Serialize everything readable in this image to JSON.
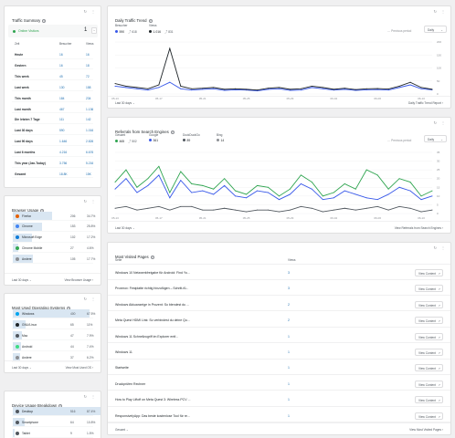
{
  "traffic_summary": {
    "title": "Traffic Summary",
    "online_label": "Online Visitors",
    "online_count": "1",
    "col_period": "Zeit",
    "col_visitors": "Besucher",
    "col_views": "Views",
    "rows": [
      {
        "label": "Heute",
        "visitors": "16",
        "views": "16"
      },
      {
        "label": "Gestern",
        "visitors": "16",
        "views": "18"
      },
      {
        "label": "This week",
        "visitors": "45",
        "views": "72"
      },
      {
        "label": "Last week",
        "visitors": "130",
        "views": "158"
      },
      {
        "label": "This month",
        "visitors": "184",
        "views": "234"
      },
      {
        "label": "Last month",
        "visitors": "467",
        "views": "1.136"
      },
      {
        "label": "Die letzten 7 Tage",
        "visitors": "111",
        "views": "142"
      },
      {
        "label": "Last 30 days",
        "visitors": "590",
        "views": "1.016"
      },
      {
        "label": "Last 90 days",
        "visitors": "1.646",
        "views": "2.826"
      },
      {
        "label": "Last 6 months",
        "visitors": "4.216",
        "views": "6.676"
      },
      {
        "label": "This year (Jan-Today)",
        "visitors": "3.756",
        "views": "5.216"
      },
      {
        "label": "Gesamt",
        "visitors": "18.8K",
        "views": "15K"
      }
    ]
  },
  "browser_usage": {
    "title": "Browser Usage",
    "rows": [
      {
        "name": "Firefox",
        "count": "206",
        "pct": "34.7%",
        "frac": 0.347,
        "color": "#e66000"
      },
      {
        "name": "Chrome",
        "count": "153",
        "pct": "25.8%",
        "frac": 0.258,
        "color": "#4285f4"
      },
      {
        "name": "Microsoft Edge",
        "count": "102",
        "pct": "17.2%",
        "frac": 0.172,
        "color": "#0f7cd8"
      },
      {
        "name": "Chrome Mobile",
        "count": "27",
        "pct": "4.6%",
        "frac": 0.046,
        "color": "#34a853"
      },
      {
        "name": "Andere",
        "count": "105",
        "pct": "17.7%",
        "frac": 0.177,
        "color": "#8c8f94"
      }
    ],
    "period": "Last 30 days",
    "link": "View Browser Usage"
  },
  "os_usage": {
    "title": "Most Used Operating Systems",
    "rows": [
      {
        "name": "Windows",
        "count": "400",
        "pct": "67.5%",
        "frac": 0.675,
        "color": "#00a4ef"
      },
      {
        "name": "GNU/Linux",
        "count": "65",
        "pct": "11%",
        "frac": 0.11,
        "color": "#1d2327"
      },
      {
        "name": "Mac",
        "count": "47",
        "pct": "7.9%",
        "frac": 0.079,
        "color": "#50575e"
      },
      {
        "name": "Android",
        "count": "44",
        "pct": "7.4%",
        "frac": 0.074,
        "color": "#3ddc84"
      },
      {
        "name": "Andere",
        "count": "37",
        "pct": "6.2%",
        "frac": 0.062,
        "color": "#8c8f94"
      }
    ],
    "period": "Last 30 days",
    "link": "View Most Used OS"
  },
  "device_usage": {
    "title": "Device Usage Breakdown",
    "rows": [
      {
        "name": "Desktop",
        "count": "516",
        "pct": "87.4%",
        "frac": 0.874
      },
      {
        "name": "Smartphone",
        "count": "64",
        "pct": "10.8%",
        "frac": 0.108
      },
      {
        "name": "Tablet",
        "count": "9",
        "pct": "1.5%",
        "frac": 0.015
      }
    ]
  },
  "daily_trend": {
    "title": "Daily Traffic Trend",
    "series_labels": [
      {
        "name": "Besucher",
        "value": "590",
        "change": "618",
        "color": "#3858e9"
      },
      {
        "name": "Views",
        "value": "1.016",
        "change": "831",
        "color": "#1d2327"
      }
    ],
    "previous_label": "Previous period",
    "select": "Daily",
    "period": "Last 30 days",
    "link": "Daily Traffic Trend Report"
  },
  "referrals": {
    "title": "Referrals from Search Engines",
    "series_labels": [
      {
        "name": "Gesamt",
        "value": "465",
        "change": "502",
        "color": "#2ea44f"
      },
      {
        "name": "Google",
        "value": "361",
        "change": "",
        "color": "#3858e9"
      },
      {
        "name": "DuckDuckGo",
        "value": "89",
        "change": "",
        "color": "#50575e"
      },
      {
        "name": "Bing",
        "value": "14",
        "change": "",
        "color": "#8c8f94"
      }
    ],
    "previous_label": "Previous period",
    "select": "Daily",
    "period": "Last 30 days",
    "link": "View Referrals from Search Engines"
  },
  "pages": {
    "title": "Most Visited Pages",
    "col_title": "Seite",
    "col_views": "Views",
    "button_label": "View Content",
    "rows": [
      {
        "title": "Windows 10 Netzwerkfreigabe für Android: Find Yo...",
        "views": "3"
      },
      {
        "title": "Proxmox: Festplatte richtig hinzufügen – Schritt-fü...",
        "views": "3"
      },
      {
        "title": "Windows Akkuanzeige in Prozent: So blendest du ...",
        "views": "2"
      },
      {
        "title": "Meta Quest HDMI Link: So verbindest du deine Qu...",
        "views": "2"
      },
      {
        "title": "Windows 11 Schnellzugriff im Explorer entf...",
        "views": "1"
      },
      {
        "title": "Windows 11",
        "views": "1"
      },
      {
        "title": "Startseite",
        "views": "1"
      },
      {
        "title": "Druckprüfen Rechner",
        "views": "1"
      },
      {
        "title": "How to Play Liftoff on Meta Quest 3: Wireless PCV ...",
        "views": "1"
      },
      {
        "title": "ResponsivelyApp: Das beste kostenlose Tool für re...",
        "views": "1"
      }
    ],
    "period": "Gesamt",
    "link": "View Most Visited Pages"
  },
  "chart_data": [
    {
      "type": "line",
      "title": "Daily Traffic Trend",
      "x": [
        "05-13",
        "05-14",
        "05-15",
        "05-16",
        "05-17",
        "05-18",
        "05-19",
        "05-20",
        "05-21",
        "05-22",
        "05-23",
        "05-24",
        "05-25",
        "05-26",
        "05-27",
        "05-28",
        "05-29",
        "05-30",
        "05-31",
        "06-01",
        "06-02",
        "06-03",
        "06-04",
        "06-05",
        "06-06",
        "06-07",
        "06-08",
        "06-09",
        "06-10",
        "06-11"
      ],
      "x_ticks": [
        "05-13",
        "05-17",
        "05-21",
        "05-25",
        "05-29",
        "06-02",
        "06-06",
        "06-10"
      ],
      "y_ticks": [
        0,
        50,
        100,
        150,
        200
      ],
      "ylim": [
        0,
        200
      ],
      "series": [
        {
          "name": "Besucher",
          "values": [
            30,
            25,
            20,
            15,
            25,
            45,
            20,
            15,
            18,
            20,
            14,
            16,
            15,
            12,
            18,
            20,
            14,
            15,
            25,
            20,
            15,
            18,
            14,
            16,
            17,
            15,
            25,
            35,
            20,
            16
          ]
        },
        {
          "name": "Views",
          "values": [
            40,
            30,
            25,
            20,
            35,
            175,
            30,
            20,
            22,
            25,
            18,
            20,
            18,
            15,
            22,
            25,
            18,
            20,
            30,
            25,
            18,
            22,
            17,
            20,
            21,
            19,
            30,
            45,
            25,
            18
          ]
        }
      ]
    },
    {
      "type": "line",
      "title": "Referrals from Search Engines",
      "x": [
        "05-13",
        "05-14",
        "05-15",
        "05-16",
        "05-17",
        "05-18",
        "05-19",
        "05-20",
        "05-21",
        "05-22",
        "05-23",
        "05-24",
        "05-25",
        "05-26",
        "05-27",
        "05-28",
        "05-29",
        "05-30",
        "05-31",
        "06-01",
        "06-02",
        "06-03",
        "06-04",
        "06-05",
        "06-06",
        "06-07",
        "06-08",
        "06-09",
        "06-10",
        "06-11"
      ],
      "x_ticks": [
        "05-13",
        "05-17",
        "05-21",
        "05-25",
        "05-29",
        "06-02",
        "06-06",
        "06-10"
      ],
      "y_ticks": [
        0,
        5,
        10,
        15,
        20,
        25,
        30,
        35
      ],
      "ylim": [
        0,
        35
      ],
      "series": [
        {
          "name": "Gesamt",
          "values": [
            18,
            25,
            15,
            20,
            27,
            12,
            24,
            17,
            16,
            14,
            20,
            13,
            11,
            16,
            15,
            10,
            14,
            22,
            18,
            10,
            12,
            17,
            14,
            25,
            22,
            14,
            20,
            18,
            10,
            13
          ]
        },
        {
          "name": "Google",
          "values": [
            14,
            20,
            12,
            16,
            22,
            9,
            19,
            12,
            13,
            11,
            16,
            10,
            9,
            13,
            12,
            8,
            11,
            17,
            14,
            8,
            9,
            13,
            11,
            9,
            8,
            11,
            15,
            13,
            8,
            10
          ]
        },
        {
          "name": "DuckDuckGo",
          "values": [
            3,
            4,
            2,
            3,
            4,
            2,
            4,
            4,
            2,
            2,
            3,
            2,
            1,
            2,
            2,
            1,
            2,
            4,
            3,
            1,
            2,
            3,
            2,
            3,
            4,
            2,
            4,
            3,
            1,
            2
          ]
        }
      ]
    }
  ]
}
